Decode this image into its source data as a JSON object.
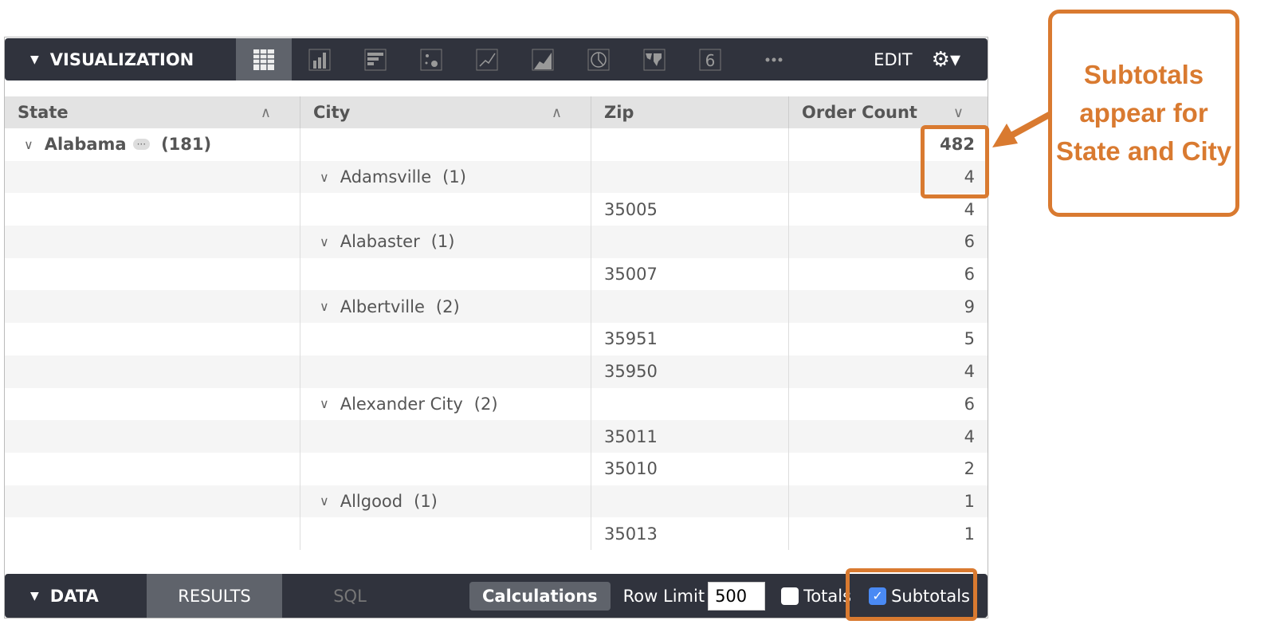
{
  "visualization": {
    "title": "VISUALIZATION",
    "edit": "EDIT",
    "types": [
      "table",
      "column",
      "bar",
      "scatter",
      "line",
      "area",
      "pie",
      "map",
      "single-value",
      "more"
    ],
    "active": "table"
  },
  "table": {
    "headers": [
      "State",
      "City",
      "Zip",
      "Order Count"
    ],
    "state": {
      "name": "Alabama",
      "count": "(181)",
      "total": "482"
    },
    "rows": [
      {
        "city": "Adamsville",
        "count": "(1)",
        "zip": "",
        "value": "4"
      },
      {
        "city": "",
        "zip": "35005",
        "value": "4"
      },
      {
        "city": "Alabaster",
        "count": "(1)",
        "zip": "",
        "value": "6"
      },
      {
        "city": "",
        "zip": "35007",
        "value": "6"
      },
      {
        "city": "Albertville",
        "count": "(2)",
        "zip": "",
        "value": "9"
      },
      {
        "city": "",
        "zip": "35951",
        "value": "5"
      },
      {
        "city": "",
        "zip": "35950",
        "value": "4"
      },
      {
        "city": "Alexander City",
        "count": "(2)",
        "zip": "",
        "value": "6"
      },
      {
        "city": "",
        "zip": "35011",
        "value": "4"
      },
      {
        "city": "",
        "zip": "35010",
        "value": "2"
      },
      {
        "city": "Allgood",
        "count": "(1)",
        "zip": "",
        "value": "1"
      },
      {
        "city": "",
        "zip": "35013",
        "value": "1"
      }
    ]
  },
  "data_bar": {
    "title": "DATA",
    "tabs": [
      "RESULTS",
      "SQL"
    ],
    "calculations": "Calculations",
    "row_limit_label": "Row Limit",
    "row_limit": "500",
    "totals": "Totals",
    "totals_checked": false,
    "subtotals": "Subtotals",
    "subtotals_checked": true
  },
  "annotation": {
    "text": "Subtotals appear for State and City",
    "color": "#d97a30"
  }
}
